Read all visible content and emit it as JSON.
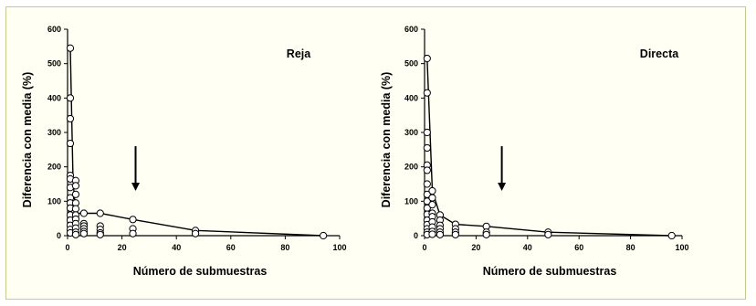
{
  "chart_data": [
    {
      "type": "scatter",
      "panel_label": "Reja",
      "xlabel": "Número de submuestras",
      "ylabel": "Diferencia con media (%)",
      "xlim": [
        0,
        100
      ],
      "ylim": [
        0,
        600
      ],
      "xticks": [
        0,
        20,
        40,
        60,
        80,
        100
      ],
      "yticks": [
        0,
        100,
        200,
        300,
        400,
        500,
        600
      ],
      "grid": false,
      "arrow_x": 25,
      "curve": {
        "x": [
          1,
          2,
          3,
          6,
          12,
          24,
          47,
          94
        ],
        "y": [
          545,
          160,
          65,
          65,
          65,
          47,
          15,
          0
        ]
      },
      "points": [
        {
          "x": 1,
          "y": 545
        },
        {
          "x": 1,
          "y": 400
        },
        {
          "x": 1,
          "y": 340
        },
        {
          "x": 1,
          "y": 268
        },
        {
          "x": 1,
          "y": 175
        },
        {
          "x": 1,
          "y": 165
        },
        {
          "x": 1,
          "y": 140
        },
        {
          "x": 1,
          "y": 110
        },
        {
          "x": 1,
          "y": 95
        },
        {
          "x": 1,
          "y": 80
        },
        {
          "x": 1,
          "y": 60
        },
        {
          "x": 1,
          "y": 45
        },
        {
          "x": 1,
          "y": 30
        },
        {
          "x": 1,
          "y": 18
        },
        {
          "x": 1,
          "y": 8
        },
        {
          "x": 3,
          "y": 160
        },
        {
          "x": 3,
          "y": 145
        },
        {
          "x": 3,
          "y": 120
        },
        {
          "x": 3,
          "y": 95
        },
        {
          "x": 3,
          "y": 78
        },
        {
          "x": 3,
          "y": 60
        },
        {
          "x": 3,
          "y": 48
        },
        {
          "x": 3,
          "y": 35
        },
        {
          "x": 3,
          "y": 22
        },
        {
          "x": 3,
          "y": 10
        },
        {
          "x": 3,
          "y": 3
        },
        {
          "x": 6,
          "y": 65
        },
        {
          "x": 6,
          "y": 35
        },
        {
          "x": 6,
          "y": 28
        },
        {
          "x": 6,
          "y": 20
        },
        {
          "x": 6,
          "y": 12
        },
        {
          "x": 6,
          "y": 6
        },
        {
          "x": 12,
          "y": 65
        },
        {
          "x": 12,
          "y": 28
        },
        {
          "x": 12,
          "y": 18
        },
        {
          "x": 12,
          "y": 8
        },
        {
          "x": 12,
          "y": 3
        },
        {
          "x": 24,
          "y": 47
        },
        {
          "x": 24,
          "y": 20
        },
        {
          "x": 24,
          "y": 6
        },
        {
          "x": 47,
          "y": 15
        },
        {
          "x": 47,
          "y": 6
        },
        {
          "x": 94,
          "y": 0
        }
      ]
    },
    {
      "type": "scatter",
      "panel_label": "Directa",
      "xlabel": "Número de submuestras",
      "ylabel": "Diferencia con media (%)",
      "xlim": [
        0,
        100
      ],
      "ylim": [
        0,
        600
      ],
      "xticks": [
        0,
        20,
        40,
        60,
        80,
        100
      ],
      "yticks": [
        0,
        100,
        200,
        300,
        400,
        500,
        600
      ],
      "grid": false,
      "arrow_x": 30,
      "curve": {
        "x": [
          1,
          3,
          6,
          12,
          24,
          48,
          96
        ],
        "y": [
          515,
          130,
          60,
          33,
          27,
          10,
          0
        ]
      },
      "points": [
        {
          "x": 1,
          "y": 515
        },
        {
          "x": 1,
          "y": 415
        },
        {
          "x": 1,
          "y": 300
        },
        {
          "x": 1,
          "y": 255
        },
        {
          "x": 1,
          "y": 205
        },
        {
          "x": 1,
          "y": 190
        },
        {
          "x": 1,
          "y": 150
        },
        {
          "x": 1,
          "y": 120
        },
        {
          "x": 1,
          "y": 100
        },
        {
          "x": 1,
          "y": 80
        },
        {
          "x": 1,
          "y": 62
        },
        {
          "x": 1,
          "y": 45
        },
        {
          "x": 1,
          "y": 32
        },
        {
          "x": 1,
          "y": 20
        },
        {
          "x": 1,
          "y": 10
        },
        {
          "x": 1,
          "y": 3
        },
        {
          "x": 3,
          "y": 130
        },
        {
          "x": 3,
          "y": 110
        },
        {
          "x": 3,
          "y": 90
        },
        {
          "x": 3,
          "y": 65
        },
        {
          "x": 3,
          "y": 55
        },
        {
          "x": 3,
          "y": 40
        },
        {
          "x": 3,
          "y": 25
        },
        {
          "x": 3,
          "y": 12
        },
        {
          "x": 3,
          "y": 4
        },
        {
          "x": 6,
          "y": 60
        },
        {
          "x": 6,
          "y": 45
        },
        {
          "x": 6,
          "y": 30
        },
        {
          "x": 6,
          "y": 20
        },
        {
          "x": 6,
          "y": 10
        },
        {
          "x": 6,
          "y": 3
        },
        {
          "x": 12,
          "y": 33
        },
        {
          "x": 12,
          "y": 20
        },
        {
          "x": 12,
          "y": 10
        },
        {
          "x": 12,
          "y": 3
        },
        {
          "x": 24,
          "y": 27
        },
        {
          "x": 24,
          "y": 10
        },
        {
          "x": 24,
          "y": 3
        },
        {
          "x": 48,
          "y": 10
        },
        {
          "x": 48,
          "y": 3
        },
        {
          "x": 96,
          "y": 0
        }
      ]
    }
  ]
}
